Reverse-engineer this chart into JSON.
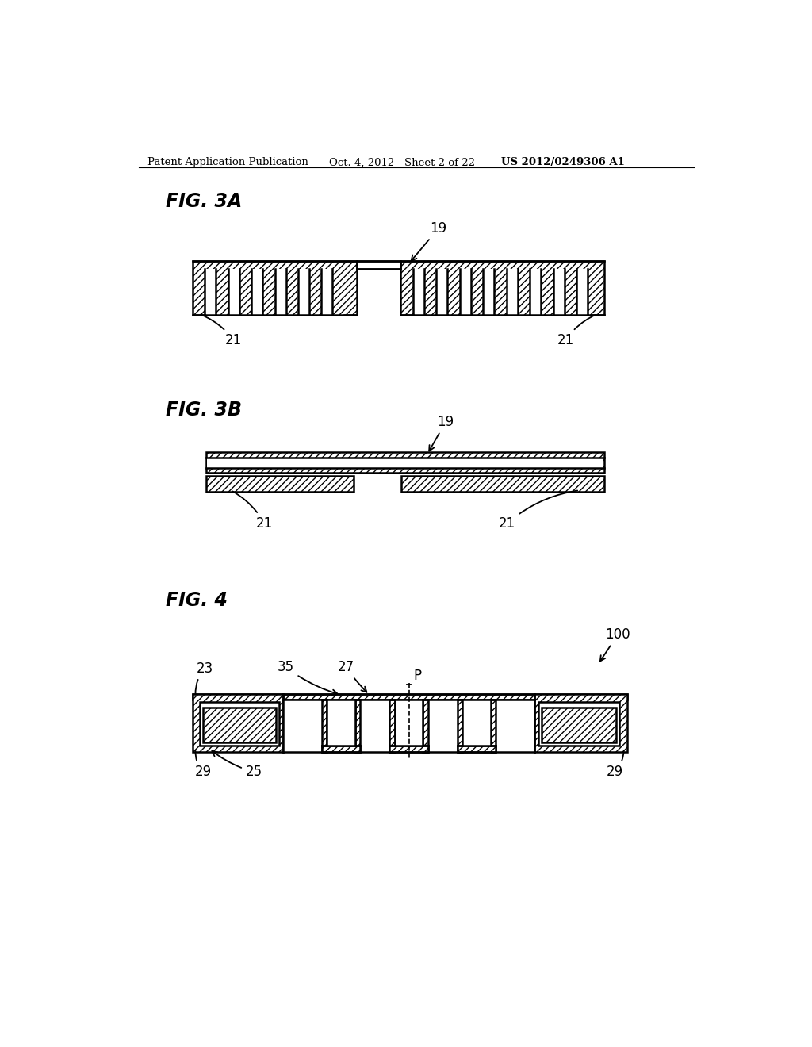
{
  "bg_color": "#ffffff",
  "header_left": "Patent Application Publication",
  "header_mid": "Oct. 4, 2012   Sheet 2 of 22",
  "header_right": "US 2012/0249306 A1",
  "fig3a_label": "FIG. 3A",
  "fig3b_label": "FIG. 3B",
  "fig4_label": "FIG. 4",
  "line_color": "#000000"
}
